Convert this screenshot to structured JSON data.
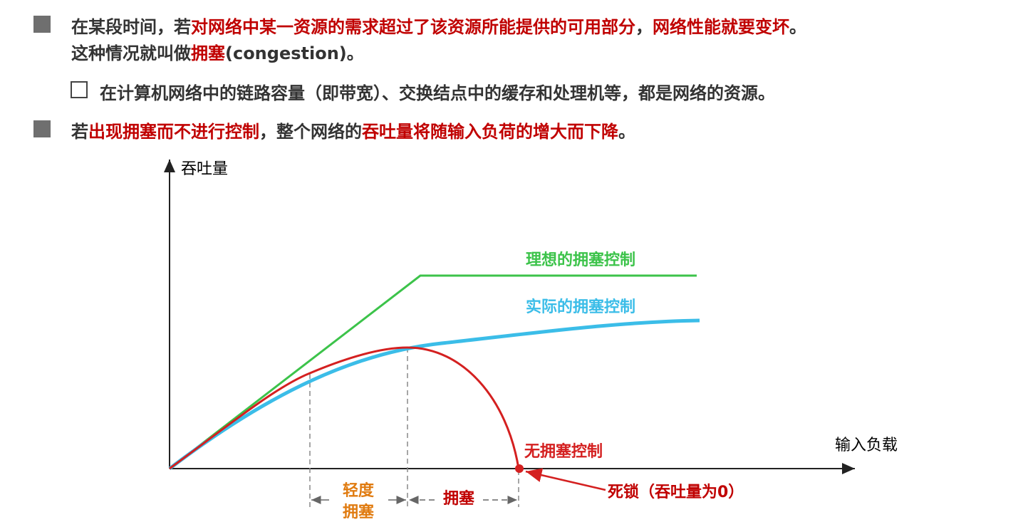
{
  "bullets": [
    {
      "lines": [
        [
          {
            "text": "在某段时间，若",
            "color": "#333333"
          },
          {
            "text": "对网络中某一资源的需求超过了该资源所能提供的可用部分",
            "color": "#c00000"
          },
          {
            "text": "，",
            "color": "#333333"
          },
          {
            "text": "网络性能就要变坏",
            "color": "#c00000"
          },
          {
            "text": "。",
            "color": "#333333"
          }
        ],
        [
          {
            "text": "这种情况就叫做",
            "color": "#333333"
          },
          {
            "text": "拥塞",
            "color": "#c00000"
          },
          {
            "text": "(congestion)。",
            "color": "#333333"
          }
        ]
      ]
    },
    {
      "lines": [
        [
          {
            "text": "若",
            "color": "#333333"
          },
          {
            "text": "出现拥塞而不进行控制",
            "color": "#c00000"
          },
          {
            "text": "，整个网络的",
            "color": "#333333"
          },
          {
            "text": "吞吐量将随输入负荷的增大而下降",
            "color": "#c00000"
          },
          {
            "text": "。",
            "color": "#333333"
          }
        ]
      ]
    }
  ],
  "sub_bullet": "在计算机网络中的链路容量（即带宽）、交换结点中的缓存和处理机等，都是网络的资源。",
  "diagram": {
    "y_axis": "吞吐量",
    "x_axis": "输入负载",
    "ideal": {
      "label": "理想的拥塞控制",
      "color": "#3cc34a"
    },
    "actual": {
      "label": "实际的拥塞控制",
      "color": "#3bbde8"
    },
    "none": {
      "label": "无拥塞控制",
      "color": "#d42020"
    },
    "deadlock": "死锁（吞吐量为0）",
    "light_congestion": [
      "轻度",
      "拥塞"
    ],
    "congestion": "拥塞"
  }
}
